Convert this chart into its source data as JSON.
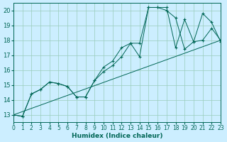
{
  "xlabel": "Humidex (Indice chaleur)",
  "bg_color": "#cceeff",
  "grid_color": "#99ccbb",
  "line_color": "#006655",
  "xlim": [
    0,
    23
  ],
  "ylim": [
    12.5,
    20.5
  ],
  "xticks": [
    0,
    1,
    2,
    3,
    4,
    5,
    6,
    7,
    8,
    9,
    10,
    11,
    12,
    13,
    14,
    15,
    16,
    17,
    18,
    19,
    20,
    21,
    22,
    23
  ],
  "yticks": [
    13,
    14,
    15,
    16,
    17,
    18,
    19,
    20
  ],
  "line1_x": [
    0,
    1,
    2,
    3,
    4,
    5,
    6,
    7,
    8,
    9,
    10,
    11,
    12,
    13,
    14,
    15,
    16,
    17,
    18,
    19,
    20,
    21,
    22,
    23
  ],
  "line1_y": [
    13.0,
    12.9,
    14.4,
    14.7,
    15.2,
    15.1,
    14.9,
    14.2,
    14.2,
    15.3,
    15.9,
    16.3,
    16.9,
    17.8,
    16.9,
    20.2,
    20.2,
    20.2,
    17.5,
    19.4,
    17.9,
    18.0,
    18.8,
    18.0
  ],
  "line2_x": [
    0,
    1,
    2,
    3,
    4,
    5,
    6,
    7,
    8,
    9,
    10,
    11,
    12,
    13,
    14,
    15,
    16,
    17,
    18,
    19,
    20,
    21,
    22,
    23
  ],
  "line2_y": [
    13.0,
    12.9,
    14.4,
    14.7,
    15.2,
    15.1,
    14.9,
    14.2,
    14.2,
    15.3,
    16.2,
    16.6,
    17.5,
    17.8,
    17.8,
    20.2,
    20.2,
    20.0,
    19.5,
    17.4,
    17.9,
    19.8,
    19.2,
    17.9
  ],
  "line3_x": [
    0,
    23
  ],
  "line3_y": [
    13.0,
    18.0
  ]
}
